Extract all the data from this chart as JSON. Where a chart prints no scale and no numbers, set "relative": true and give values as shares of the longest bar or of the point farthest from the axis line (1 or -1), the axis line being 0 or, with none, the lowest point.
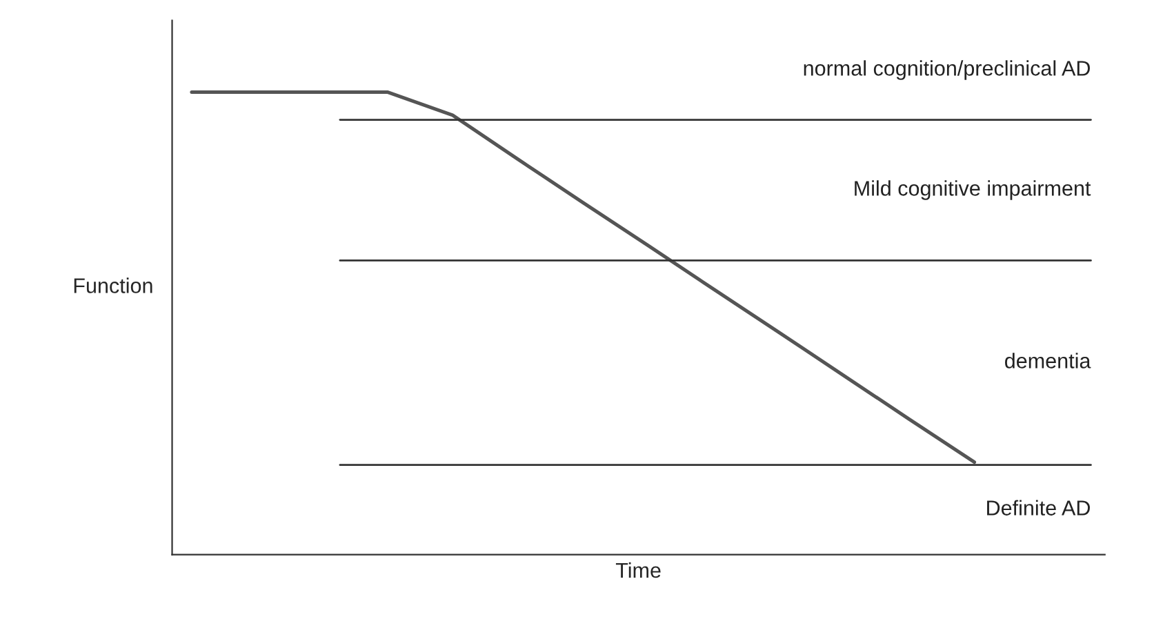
{
  "chart_data": {
    "type": "line",
    "relative": true,
    "xlabel": "Time",
    "ylabel": "Function",
    "categories": [
      null,
      null,
      null,
      null,
      null,
      null,
      null,
      null,
      null,
      null,
      null,
      null,
      null
    ],
    "series": [
      {
        "color": "#555555",
        "values": [
          1.0,
          1.0,
          1.0,
          1.0,
          0.95,
          0.855,
          0.761,
          0.668,
          0.574,
          0.481,
          0.387,
          0.293,
          0.2
        ]
      }
    ],
    "ref_lines": [
      {
        "axis": "y",
        "value": 0.94,
        "color": "#333333"
      },
      {
        "axis": "y",
        "value": 0.636,
        "color": "#333333"
      },
      {
        "axis": "y",
        "value": 0.194,
        "color": "#333333"
      }
    ],
    "annotations": [
      "normal cognition/preclinical AD",
      "Mild cognitive impairment",
      "dementia",
      "Definite AD"
    ],
    "line_style": "solid",
    "marker": "none"
  }
}
